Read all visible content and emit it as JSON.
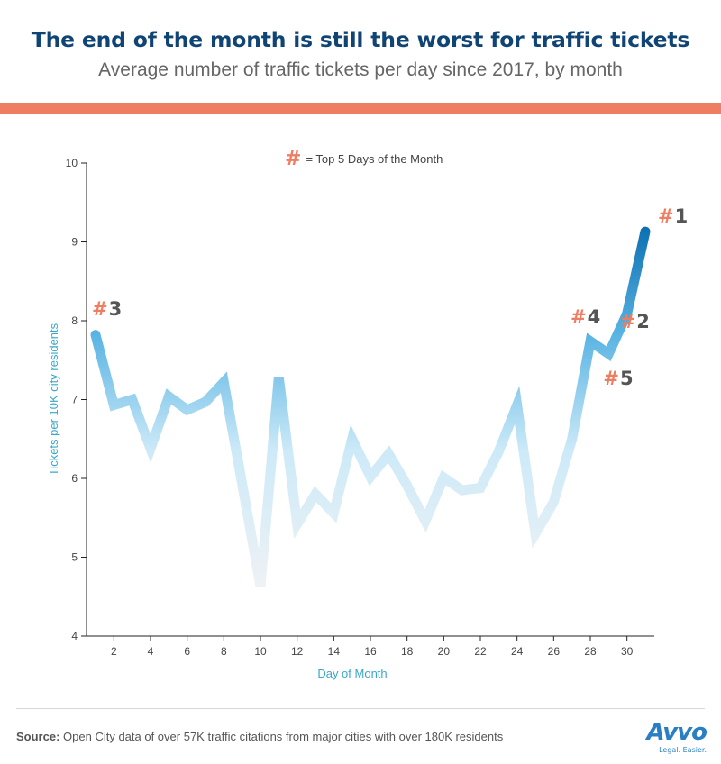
{
  "header": {
    "title": "The end of the month is still the worst for traffic tickets",
    "subtitle": "Average number of traffic tickets per day since 2017, by month"
  },
  "legend": {
    "symbol": "#",
    "text": "= Top 5 Days of the Month"
  },
  "source": {
    "label": "Source:",
    "text": "Open City data of over 57K traffic citations from major cities with over 180K residents"
  },
  "brand": {
    "name": "Avvo",
    "tagline": "Legal. Easier."
  },
  "colors": {
    "title": "#0f4475",
    "accent": "#ef7d62",
    "axis_label": "#3aa7c9",
    "line_high": "#0b6fb0",
    "line_mid": "#5ab4e3",
    "line_low": "#cdeaf8",
    "line_min": "#eef2f5"
  },
  "chart_data": {
    "type": "line",
    "xlabel": "Day of Month",
    "ylabel": "Tickets per 10K city residents",
    "xlim": [
      1,
      31
    ],
    "ylim": [
      4,
      10
    ],
    "x_ticks": [
      2,
      4,
      6,
      8,
      10,
      12,
      14,
      16,
      18,
      20,
      22,
      24,
      26,
      28,
      30
    ],
    "y_ticks": [
      4,
      5,
      6,
      7,
      8,
      9,
      10
    ],
    "grid": false,
    "x": [
      1,
      2,
      3,
      4,
      5,
      6,
      7,
      8,
      9,
      10,
      11,
      12,
      13,
      14,
      15,
      16,
      17,
      18,
      19,
      20,
      21,
      22,
      23,
      24,
      25,
      26,
      27,
      28,
      29,
      30,
      31
    ],
    "values": [
      7.82,
      6.93,
      7.0,
      6.38,
      7.04,
      6.87,
      6.97,
      7.22,
      5.93,
      4.63,
      7.28,
      5.42,
      5.8,
      5.56,
      6.5,
      6.02,
      6.31,
      5.91,
      5.46,
      6.01,
      5.85,
      5.88,
      6.34,
      6.93,
      5.3,
      5.7,
      6.5,
      7.74,
      7.58,
      8.09,
      9.13
    ],
    "annotations": [
      {
        "day": 31,
        "symbol": "#",
        "rank": "1"
      },
      {
        "day": 30,
        "symbol": "#",
        "rank": "2"
      },
      {
        "day": 1,
        "symbol": "#",
        "rank": "3"
      },
      {
        "day": 28,
        "symbol": "#",
        "rank": "4"
      },
      {
        "day": 29,
        "symbol": "#",
        "rank": "5"
      }
    ]
  }
}
